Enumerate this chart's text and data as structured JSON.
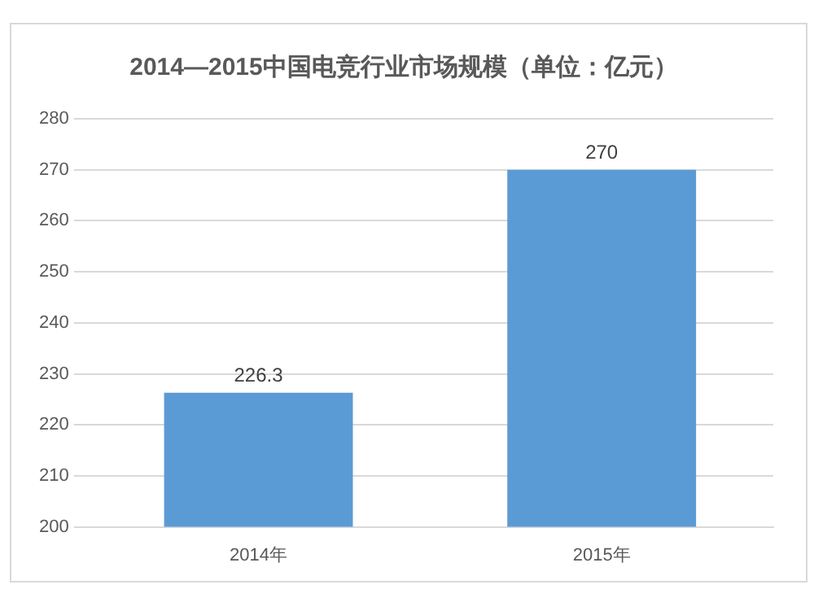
{
  "chart_data": {
    "type": "bar",
    "title": "2014—2015中国电竞行业市场规模（单位：亿元）",
    "categories": [
      "2014年",
      "2015年"
    ],
    "values": [
      226.3,
      270
    ],
    "color": "#5b9bd5",
    "ylim": [
      200,
      280
    ],
    "yticks": [
      200,
      210,
      220,
      230,
      240,
      250,
      260,
      270,
      280
    ],
    "grid": "y",
    "data_labels": true
  }
}
